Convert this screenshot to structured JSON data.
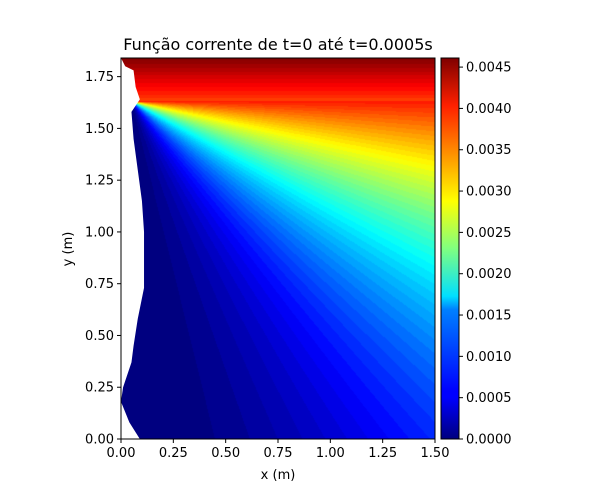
{
  "chart_data": {
    "type": "heatmap",
    "subtype": "filled-contour",
    "title": "Função corrente de t=0 até t=0.0005s",
    "xlabel": "x (m)",
    "ylabel": "y (m)",
    "xlim": [
      0.0,
      1.5
    ],
    "ylim": [
      0.0,
      1.84
    ],
    "x_ticks": [
      0.0,
      0.25,
      0.5,
      0.75,
      1.0,
      1.25,
      1.5
    ],
    "x_tick_labels": [
      "0.00",
      "0.25",
      "0.50",
      "0.75",
      "1.00",
      "1.25",
      "1.50"
    ],
    "y_ticks": [
      0.0,
      0.25,
      0.5,
      0.75,
      1.0,
      1.25,
      1.5,
      1.75
    ],
    "y_tick_labels": [
      "0.00",
      "0.25",
      "0.50",
      "0.75",
      "1.00",
      "1.25",
      "1.50",
      "1.75"
    ],
    "colormap": "jet",
    "colorbar": {
      "range": [
        0.0,
        0.00461
      ],
      "ticks": [
        0.0,
        0.0005,
        0.001,
        0.0015,
        0.002,
        0.0025,
        0.003,
        0.0035,
        0.004,
        0.0045
      ],
      "tick_labels": [
        "0.0000",
        "0.0005",
        "0.0010",
        "0.0015",
        "0.0020",
        "0.0025",
        "0.0030",
        "0.0035",
        "0.0040",
        "0.0045"
      ]
    },
    "field": {
      "description": "stream function; max along top edge, spreading from source near (0.09, 1.63); zero along left boundary and lower region",
      "source_point": [
        0.09,
        1.63
      ],
      "left_boundary": [
        [
          0.0,
          1.84
        ],
        [
          0.02,
          1.8
        ],
        [
          0.06,
          1.78
        ],
        [
          0.07,
          1.7
        ],
        [
          0.09,
          1.64
        ],
        [
          0.05,
          1.58
        ],
        [
          0.06,
          1.45
        ],
        [
          0.08,
          1.3
        ],
        [
          0.1,
          1.15
        ],
        [
          0.11,
          1.0
        ],
        [
          0.11,
          0.85
        ],
        [
          0.11,
          0.73
        ],
        [
          0.08,
          0.58
        ],
        [
          0.06,
          0.45
        ],
        [
          0.05,
          0.37
        ],
        [
          0.01,
          0.25
        ],
        [
          0.0,
          0.18
        ],
        [
          0.04,
          0.08
        ],
        [
          0.09,
          0.0
        ]
      ]
    }
  }
}
